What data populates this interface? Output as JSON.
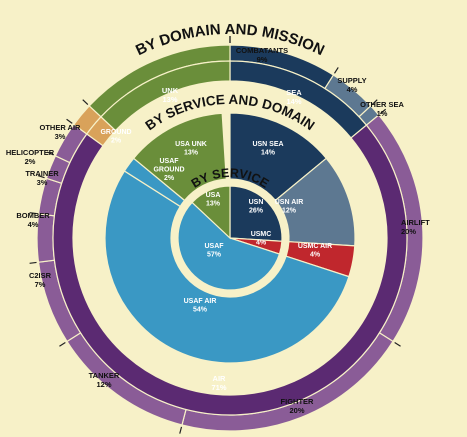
{
  "chart_data": [
    {
      "type": "pie",
      "title": "BY SERVICE",
      "slices": [
        {
          "label": "USN",
          "value": 26,
          "color": "#1b3a5c"
        },
        {
          "label": "USMC",
          "value": 4,
          "color": "#c0272d"
        },
        {
          "label": "USAF",
          "value": 57,
          "color": "#3a98c4"
        },
        {
          "label": "USA",
          "value": 13,
          "color": "#6a8e3a"
        }
      ]
    },
    {
      "type": "pie",
      "title": "BY SERVICE AND DOMAIN",
      "slices": [
        {
          "label": "USN SEA",
          "value": 14,
          "color": "#1b3a5c"
        },
        {
          "label": "USN AIR",
          "value": 12,
          "color": "#5d7891"
        },
        {
          "label": "USMC AIR",
          "value": 4,
          "color": "#c0272d"
        },
        {
          "label": "USAF AIR",
          "value": 54,
          "color": "#3a98c4"
        },
        {
          "label": "USAF GROUND",
          "value": 2,
          "color": "#3a98c4"
        },
        {
          "label": "USA UNK",
          "value": 13,
          "color": "#6a8e3a"
        }
      ]
    },
    {
      "type": "pie",
      "title": "BY DOMAIN AND MISSION",
      "slices": [
        {
          "label": "SEA",
          "value": 14,
          "color": "#1b3a5c"
        },
        {
          "label": "AIR",
          "value": 71,
          "color": "#5b2a72"
        },
        {
          "label": "GROUND",
          "value": 2,
          "color": "#d9a25a"
        },
        {
          "label": "UNK",
          "value": 13,
          "color": "#6a8e3a"
        }
      ],
      "missions": [
        {
          "label": "COMBATANTS",
          "value": 9,
          "color": "#1b3a5c"
        },
        {
          "label": "SUPPLY",
          "value": 4,
          "color": "#5d7891"
        },
        {
          "label": "OTHER SEA",
          "value": 1,
          "color": "#5d7891"
        },
        {
          "label": "AIRLIFT",
          "value": 20,
          "color": "#8a5c97"
        },
        {
          "label": "FIGHTER",
          "value": 20,
          "color": "#8a5c97"
        },
        {
          "label": "TANKER",
          "value": 12,
          "color": "#8a5c97"
        },
        {
          "label": "C2ISR",
          "value": 7,
          "color": "#8a5c97"
        },
        {
          "label": "BOMBER",
          "value": 4,
          "color": "#8a5c97"
        },
        {
          "label": "TRAINER",
          "value": 3,
          "color": "#8a5c97"
        },
        {
          "label": "HELICOPTER",
          "value": 2,
          "color": "#8a5c97"
        },
        {
          "label": "OTHER AIR",
          "value": 3,
          "color": "#8a5c97"
        },
        {
          "label": "",
          "value": 2,
          "color": "#d9a25a"
        },
        {
          "label": "",
          "value": 13,
          "color": "#6a8e3a"
        }
      ]
    }
  ],
  "colors": {
    "background": "#f7f1c8",
    "frame": "#ffffff"
  }
}
